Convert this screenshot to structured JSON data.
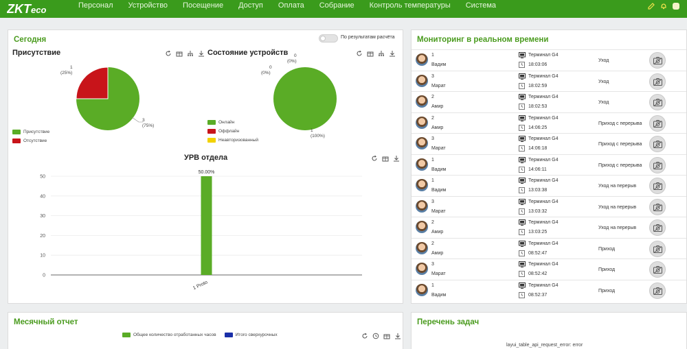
{
  "nav": {
    "items": [
      "Персонал",
      "Устройство",
      "Посещение",
      "Доступ",
      "Оплата",
      "Собрание",
      "Контроль температуры",
      "Система"
    ]
  },
  "today": {
    "title": "Сегодня",
    "toggle_label": "По результатам расчёта",
    "attendance": {
      "title": "Присутствие",
      "legend": [
        "Присутствие",
        "Отсутствие"
      ],
      "label_absent": [
        "1",
        "(25%)"
      ],
      "label_present": [
        "3",
        "(75%)"
      ]
    },
    "device_state": {
      "title": "Состояние устройств",
      "legend": [
        "Онлайн",
        "Оффлайн",
        "Неавторизованный"
      ],
      "label_top": [
        "0",
        "(0%)"
      ],
      "label_left": [
        "0",
        "(0%)"
      ],
      "label_bottom": [
        "1",
        "(100%)"
      ]
    },
    "dept_chart_title": "УРВ отдела"
  },
  "chart_data": [
    {
      "type": "pie",
      "title": "Присутствие",
      "categories": [
        "Присутствие",
        "Отсутствие"
      ],
      "values": [
        3,
        1
      ],
      "percent": [
        75,
        25
      ],
      "colors": [
        "#5aac26",
        "#c8141a"
      ]
    },
    {
      "type": "pie",
      "title": "Состояние устройств",
      "categories": [
        "Онлайн",
        "Оффлайн",
        "Неавторизованный"
      ],
      "values": [
        1,
        0,
        0
      ],
      "percent": [
        100,
        0,
        0
      ],
      "colors": [
        "#5aac26",
        "#c8141a",
        "#f2d200"
      ]
    },
    {
      "type": "bar",
      "title": "УРВ отдела",
      "categories": [
        "1 Proto"
      ],
      "values": [
        50
      ],
      "data_labels": [
        "50.00%"
      ],
      "yticks": [
        0,
        10,
        20,
        30,
        40,
        50
      ],
      "ylim": [
        0,
        50
      ],
      "grid": true,
      "color": "#5aac26"
    }
  ],
  "monitor": {
    "title": "Мониторинг в реальном времени",
    "rows": [
      {
        "id": "1",
        "name": "Вадим",
        "terminal": "Терминал G4",
        "time": "18:03:06",
        "status": "Уход"
      },
      {
        "id": "3",
        "name": "Марат",
        "terminal": "Терминал G4",
        "time": "18:02:59",
        "status": "Уход"
      },
      {
        "id": "2",
        "name": "Амир",
        "terminal": "Терминал G4",
        "time": "18:02:53",
        "status": "Уход"
      },
      {
        "id": "2",
        "name": "Амир",
        "terminal": "Терминал G4",
        "time": "14:06:25",
        "status": "Приход с перерыва"
      },
      {
        "id": "3",
        "name": "Марат",
        "terminal": "Терминал G4",
        "time": "14:06:18",
        "status": "Приход с перерыва"
      },
      {
        "id": "1",
        "name": "Вадим",
        "terminal": "Терминал G4",
        "time": "14:06:11",
        "status": "Приход с перерыва"
      },
      {
        "id": "1",
        "name": "Вадим",
        "terminal": "Терминал G4",
        "time": "13:03:38",
        "status": "Уход на перерыв"
      },
      {
        "id": "3",
        "name": "Марат",
        "terminal": "Терминал G4",
        "time": "13:03:32",
        "status": "Уход на перерыв"
      },
      {
        "id": "2",
        "name": "Амир",
        "terminal": "Терминал G4",
        "time": "13:03:25",
        "status": "Уход на перерыв"
      },
      {
        "id": "2",
        "name": "Амир",
        "terminal": "Терминал G4",
        "time": "08:52:47",
        "status": "Приход"
      },
      {
        "id": "3",
        "name": "Марат",
        "terminal": "Терминал G4",
        "time": "08:52:42",
        "status": "Приход"
      },
      {
        "id": "1",
        "name": "Вадим",
        "terminal": "Терминал G4",
        "time": "08:52:37",
        "status": "Приход"
      }
    ]
  },
  "monthly": {
    "title": "Месячный отчет",
    "legend": [
      "Общее количество отработанных часов",
      "Итого сверхурочных"
    ]
  },
  "tasks": {
    "title": "Перечень задач",
    "message": "layui_table_api_request_error: error"
  },
  "colors": {
    "brand_green": "#3a9b1c",
    "title_green": "#4a9b1e",
    "present_green": "#5aac26",
    "absent_red": "#c8141a",
    "unauth_yellow": "#f2d200",
    "overtime_blue": "#1a2fa8"
  },
  "icons": {
    "toolbar": [
      "refresh-icon",
      "gift-icon",
      "sitemap-icon",
      "download-icon"
    ],
    "monitor_row": [
      "terminal-icon",
      "clock-icon",
      "camera-photo-icon"
    ],
    "top_right": [
      "edit-icon",
      "bell-icon"
    ]
  }
}
